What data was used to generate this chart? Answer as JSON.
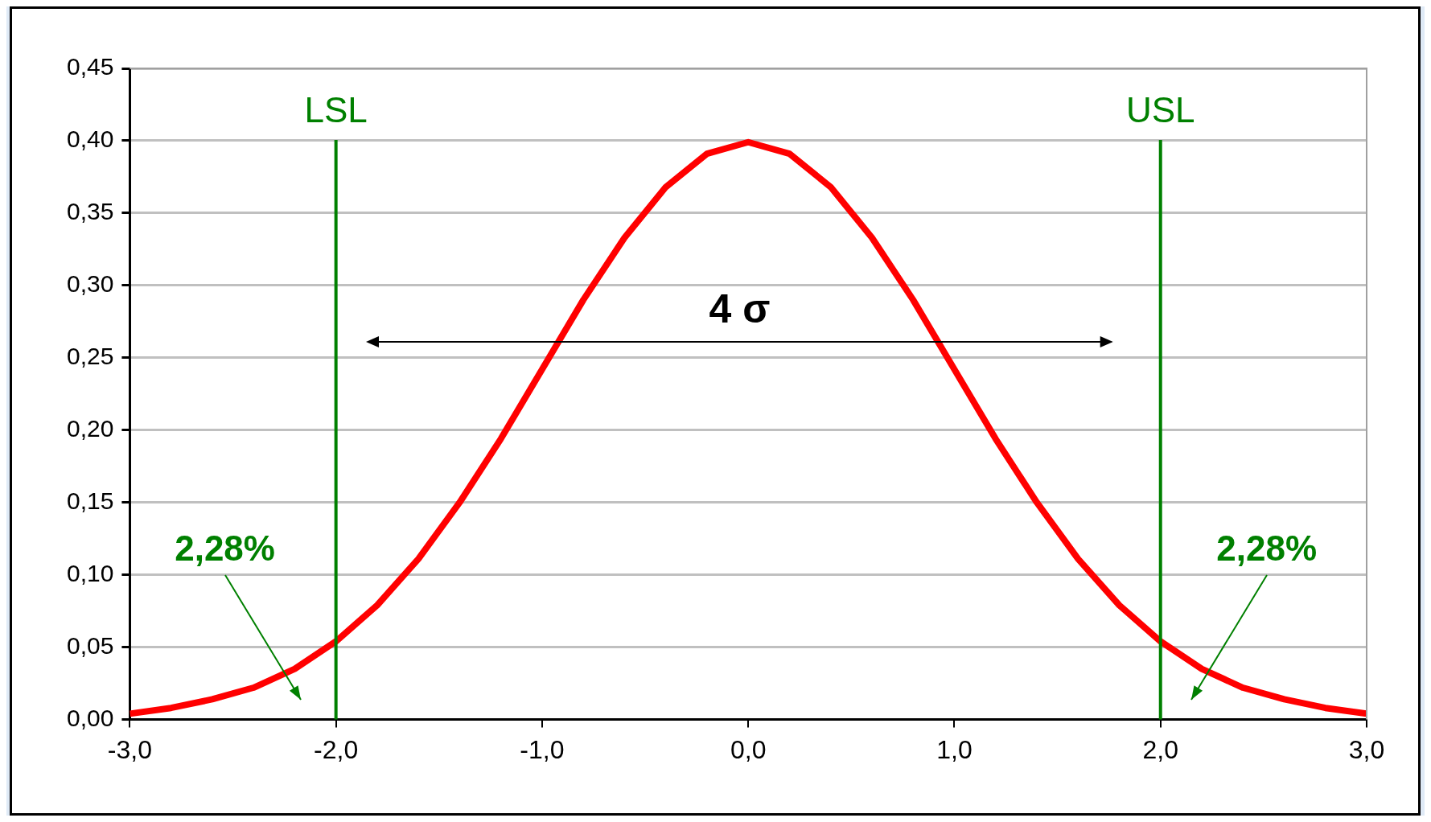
{
  "chart_data": {
    "type": "line",
    "x": [
      -3,
      -2.8,
      -2.6,
      -2.4,
      -2.2,
      -2,
      -1.8,
      -1.6,
      -1.4,
      -1.2,
      -1,
      -0.8,
      -0.6,
      -0.4,
      -0.2,
      0,
      0.2,
      0.4,
      0.6,
      0.8,
      1,
      1.2,
      1.4,
      1.6,
      1.8,
      2,
      2.2,
      2.4,
      2.6,
      2.8,
      3
    ],
    "series": [
      {
        "color": "#ff0000",
        "values": [
          0.004,
          0.008,
          0.014,
          0.022,
          0.035,
          0.054,
          0.079,
          0.111,
          0.15,
          0.194,
          0.242,
          0.29,
          0.333,
          0.368,
          0.391,
          0.399,
          0.391,
          0.368,
          0.333,
          0.29,
          0.242,
          0.194,
          0.15,
          0.111,
          0.079,
          0.054,
          0.035,
          0.022,
          0.014,
          0.008,
          0.004
        ]
      }
    ],
    "xlim": [
      -3,
      3
    ],
    "xticks": [
      {
        "value": -3,
        "label": "-3,0"
      },
      {
        "value": -2,
        "label": "-2,0"
      },
      {
        "value": -1,
        "label": "-1,0"
      },
      {
        "value": 0,
        "label": "0,0"
      },
      {
        "value": 1,
        "label": "1,0"
      },
      {
        "value": 2,
        "label": "2,0"
      },
      {
        "value": 3,
        "label": "3,0"
      }
    ],
    "ylim": [
      0,
      0.45
    ],
    "yticks": [
      {
        "value": 0,
        "label": "0,00"
      },
      {
        "value": 0.05,
        "label": "0,05"
      },
      {
        "value": 0.1,
        "label": "0,10"
      },
      {
        "value": 0.15,
        "label": "0,15"
      },
      {
        "value": 0.2,
        "label": "0,20"
      },
      {
        "value": 0.25,
        "label": "0,25"
      },
      {
        "value": 0.3,
        "label": "0,30"
      },
      {
        "value": 0.35,
        "label": "0,35"
      },
      {
        "value": 0.4,
        "label": "0,40"
      },
      {
        "value": 0.45,
        "label": "0,45"
      }
    ],
    "grid": "y",
    "legend": false,
    "marker": "none",
    "line_style": "solid",
    "ref_lines": [
      {
        "axis": "x",
        "value": -2,
        "label": "LSL",
        "color": "#008000"
      },
      {
        "axis": "x",
        "value": 2,
        "label": "USL",
        "color": "#008000"
      }
    ],
    "annotations": [
      "4 σ",
      "2,28%",
      "2,28%"
    ]
  }
}
